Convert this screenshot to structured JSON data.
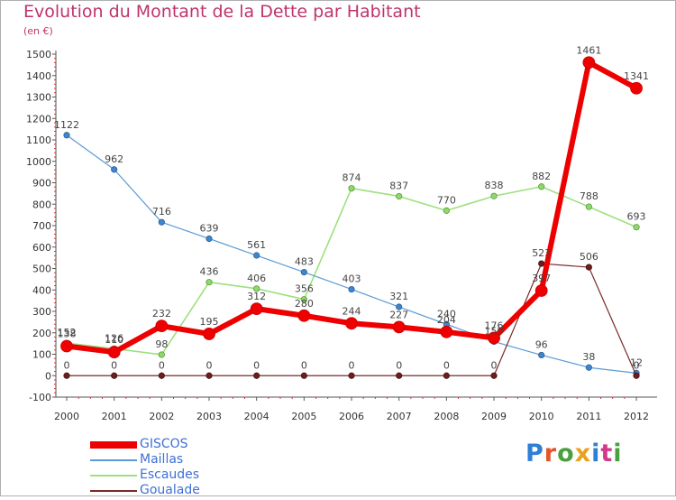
{
  "header": {
    "title": "Evolution du Montant de la Dette par Habitant",
    "subtitle": "(en €)"
  },
  "brand": {
    "text": "Proxiti",
    "colors": [
      "#2f7fd6",
      "#e4552a",
      "#4aa03f",
      "#e8a21c",
      "#2f7fd6",
      "#d43a8a",
      "#4aa03f"
    ]
  },
  "chart_data": {
    "type": "line",
    "x": [
      "2000",
      "2001",
      "2002",
      "2003",
      "2004",
      "2005",
      "2006",
      "2007",
      "2008",
      "2009",
      "2010",
      "2011",
      "2012"
    ],
    "y_ticks": [
      "-100",
      "0",
      "100",
      "200",
      "300",
      "400",
      "500",
      "600",
      "700",
      "800",
      "900",
      "1000",
      "1100",
      "1200",
      "1300",
      "1400",
      "1500"
    ],
    "ylim": [
      -100,
      1500
    ],
    "grid": false,
    "legend_position": "bottom-left",
    "series": [
      {
        "name": "GISCOS",
        "color": "#ee0000",
        "values": [
          138,
          110,
          232,
          195,
          312,
          280,
          244,
          227,
          204,
          176,
          397,
          1461,
          1341
        ],
        "labels": [
          "138",
          "110",
          "232",
          "195",
          "312",
          "280",
          "244",
          "227",
          "204",
          "176",
          "397",
          "1461",
          "1341"
        ]
      },
      {
        "name": "Maillas",
        "color": "#5b9bd5",
        "values": [
          1122,
          962,
          716,
          639,
          561,
          483,
          403,
          321,
          240,
          159,
          96,
          38,
          12
        ],
        "labels": [
          "1122",
          "962",
          "716",
          "639",
          "561",
          "483",
          "403",
          "321",
          "240",
          "159",
          "96",
          "38",
          "12"
        ]
      },
      {
        "name": "Escaudes",
        "color": "#9ee07e",
        "values": [
          152,
          126,
          98,
          436,
          406,
          356,
          874,
          837,
          770,
          838,
          882,
          788,
          693
        ],
        "labels": [
          "152",
          "126",
          "98",
          "436",
          "406",
          "356",
          "874",
          "837",
          "770",
          "838",
          "882",
          "788",
          "693"
        ]
      },
      {
        "name": "Goualade",
        "color": "#7a2a2a",
        "values": [
          0,
          0,
          0,
          0,
          0,
          0,
          0,
          0,
          0,
          0,
          523,
          506,
          0
        ],
        "labels": [
          "0",
          "0",
          "0",
          "0",
          "0",
          "0",
          "0",
          "0",
          "0",
          "0",
          "523",
          "506",
          "0"
        ]
      }
    ]
  }
}
